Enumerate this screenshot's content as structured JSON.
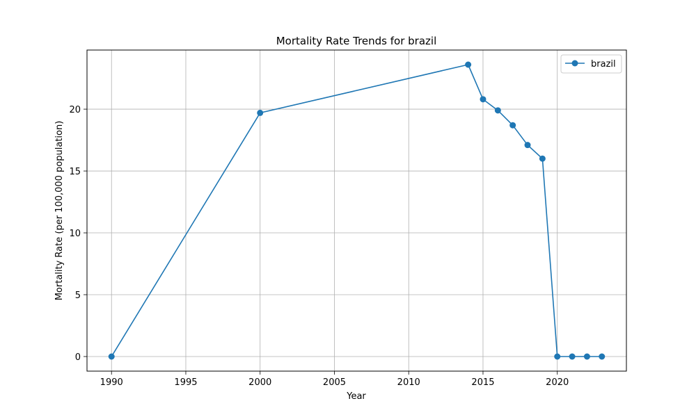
{
  "chart_data": {
    "type": "line",
    "title": "Mortality Rate Trends for brazil",
    "xlabel": "Year",
    "ylabel": "Mortality Rate (per 100,000 population)",
    "xlim": [
      1988.35,
      2024.65
    ],
    "ylim": [
      -1.18,
      24.78
    ],
    "x_ticks": [
      1990,
      1995,
      2000,
      2005,
      2010,
      2015,
      2020
    ],
    "y_ticks": [
      0,
      5,
      10,
      15,
      20
    ],
    "grid": true,
    "legend_position": "top-right",
    "series": [
      {
        "name": "brazil",
        "color": "#1f77b4",
        "marker": "circle",
        "x": [
          1990,
          2000,
          2014,
          2015,
          2016,
          2017,
          2018,
          2019,
          2020,
          2021,
          2022,
          2023
        ],
        "y": [
          0,
          19.7,
          23.6,
          20.8,
          19.9,
          18.7,
          17.1,
          16.0,
          0,
          0,
          0,
          0
        ]
      }
    ]
  }
}
